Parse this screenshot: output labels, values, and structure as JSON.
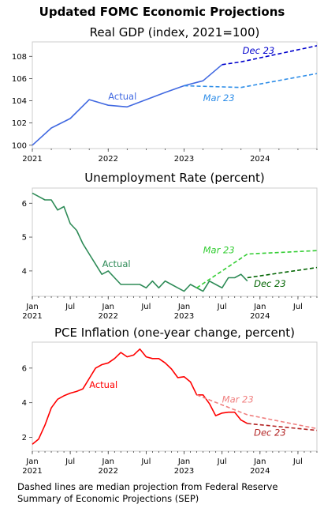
{
  "figure": {
    "title": "Updated FOMC Economic Projections",
    "footnote": "Dashed lines are median projection from Federal Reserve Summary of Economic Projections (SEP)"
  },
  "chart_data": [
    {
      "type": "line",
      "title": "Real GDP (index, 2021=100)",
      "xlabel": "",
      "ylabel": "",
      "xlim": [
        2021.0,
        2024.75
      ],
      "ylim": [
        99.7,
        109.3
      ],
      "yticks": [
        100,
        102,
        104,
        106,
        108
      ],
      "xticks": [
        {
          "pos": 2021.0,
          "label": [
            "2021"
          ]
        },
        {
          "pos": 2022.0,
          "label": [
            "2022"
          ]
        },
        {
          "pos": 2023.0,
          "label": [
            "2023"
          ]
        },
        {
          "pos": 2024.0,
          "label": [
            "2024"
          ]
        }
      ],
      "minor_step": 0.25,
      "grid": false,
      "legend": "none",
      "series": [
        {
          "name": "Actual",
          "color": "#4169e1",
          "dash": false,
          "x": [
            2021.0,
            2021.25,
            2021.5,
            2021.75,
            2022.0,
            2022.25,
            2022.5,
            2022.75,
            2023.0,
            2023.25,
            2023.5
          ],
          "y": [
            100.0,
            101.55,
            102.4,
            104.1,
            103.6,
            103.45,
            104.1,
            104.75,
            105.35,
            105.8,
            107.25
          ]
        },
        {
          "name": "Mar 23",
          "color": "#2f8ee8",
          "dash": true,
          "x": [
            2023.0,
            2023.75,
            2024.75
          ],
          "y": [
            105.35,
            105.2,
            106.45
          ]
        },
        {
          "name": "Dec 23",
          "color": "#0000cd",
          "dash": true,
          "x": [
            2023.5,
            2023.75,
            2024.75
          ],
          "y": [
            107.25,
            107.5,
            108.95
          ]
        }
      ],
      "annotations": [
        {
          "text": "Actual",
          "x": 2022.0,
          "y": 104.1,
          "color": "#4169e1",
          "italic": false
        },
        {
          "text": "Mar 23",
          "x": 2023.25,
          "y": 103.95,
          "color": "#2f8ee8",
          "italic": true
        },
        {
          "text": "Dec 23",
          "x": 2023.77,
          "y": 108.25,
          "color": "#0000cd",
          "italic": true
        }
      ]
    },
    {
      "type": "line",
      "title": "Unemployment Rate (percent)",
      "xlabel": "",
      "ylabel": "",
      "xlim": [
        2021.0,
        2024.75
      ],
      "ylim": [
        3.25,
        6.45
      ],
      "yticks": [
        4,
        5,
        6
      ],
      "xticks": [
        {
          "pos": 2021.0,
          "label": [
            "Jan",
            "2021"
          ]
        },
        {
          "pos": 2021.5,
          "label": [
            "Jul"
          ]
        },
        {
          "pos": 2022.0,
          "label": [
            "Jan",
            "2022"
          ]
        },
        {
          "pos": 2022.5,
          "label": [
            "Jul"
          ]
        },
        {
          "pos": 2023.0,
          "label": [
            "Jan",
            "2023"
          ]
        },
        {
          "pos": 2023.5,
          "label": [
            "Jul"
          ]
        },
        {
          "pos": 2024.0,
          "label": [
            "Jan",
            "2024"
          ]
        },
        {
          "pos": 2024.5,
          "label": [
            "Jul"
          ]
        }
      ],
      "minor_step": 0.0833333,
      "grid": false,
      "legend": "none",
      "series": [
        {
          "name": "Actual",
          "color": "#2e8b57",
          "dash": false,
          "x": [
            2021.0,
            2021.0833,
            2021.1667,
            2021.25,
            2021.3333,
            2021.4167,
            2021.5,
            2021.5833,
            2021.6667,
            2021.75,
            2021.8333,
            2021.9167,
            2022.0,
            2022.0833,
            2022.1667,
            2022.25,
            2022.3333,
            2022.4167,
            2022.5,
            2022.5833,
            2022.6667,
            2022.75,
            2022.8333,
            2022.9167,
            2023.0,
            2023.0833,
            2023.1667,
            2023.25,
            2023.3333,
            2023.4167,
            2023.5,
            2023.5833,
            2023.6667,
            2023.75,
            2023.8333
          ],
          "y": [
            6.3,
            6.2,
            6.1,
            6.1,
            5.8,
            5.9,
            5.4,
            5.2,
            4.8,
            4.5,
            4.2,
            3.9,
            4.0,
            3.8,
            3.6,
            3.6,
            3.6,
            3.6,
            3.5,
            3.7,
            3.5,
            3.7,
            3.6,
            3.5,
            3.4,
            3.6,
            3.5,
            3.4,
            3.7,
            3.6,
            3.5,
            3.8,
            3.8,
            3.9,
            3.7
          ]
        },
        {
          "name": "Mar 23",
          "color": "#32cd32",
          "dash": true,
          "x": [
            2023.1667,
            2023.8333,
            2024.75
          ],
          "y": [
            3.5,
            4.5,
            4.6
          ]
        },
        {
          "name": "Dec 23",
          "color": "#006400",
          "dash": true,
          "x": [
            2023.8333,
            2024.75
          ],
          "y": [
            3.8,
            4.1
          ]
        }
      ],
      "annotations": [
        {
          "text": "Actual",
          "x": 2021.92,
          "y": 4.12,
          "color": "#2e8b57",
          "italic": false
        },
        {
          "text": "Mar 23",
          "x": 2023.25,
          "y": 4.52,
          "color": "#32cd32",
          "italic": true
        },
        {
          "text": "Dec 23",
          "x": 2023.92,
          "y": 3.53,
          "color": "#006400",
          "italic": true
        }
      ]
    },
    {
      "type": "line",
      "title": "PCE Inflation (one-year change, percent)",
      "xlabel": "",
      "ylabel": "",
      "xlim": [
        2021.0,
        2024.75
      ],
      "ylim": [
        1.2,
        7.5
      ],
      "yticks": [
        2,
        4,
        6
      ],
      "xticks": [
        {
          "pos": 2021.0,
          "label": [
            "Jan",
            "2021"
          ]
        },
        {
          "pos": 2021.5,
          "label": [
            "Jul"
          ]
        },
        {
          "pos": 2022.0,
          "label": [
            "Jan",
            "2022"
          ]
        },
        {
          "pos": 2022.5,
          "label": [
            "Jul"
          ]
        },
        {
          "pos": 2023.0,
          "label": [
            "Jan",
            "2023"
          ]
        },
        {
          "pos": 2023.5,
          "label": [
            "Jul"
          ]
        },
        {
          "pos": 2024.0,
          "label": [
            "Jan",
            "2024"
          ]
        },
        {
          "pos": 2024.5,
          "label": [
            "Jul"
          ]
        }
      ],
      "minor_step": 0.0833333,
      "grid": false,
      "legend": "none",
      "series": [
        {
          "name": "Actual",
          "color": "#ff0000",
          "dash": false,
          "x": [
            2021.0,
            2021.0833,
            2021.1667,
            2021.25,
            2021.3333,
            2021.4167,
            2021.5,
            2021.5833,
            2021.6667,
            2021.75,
            2021.8333,
            2021.9167,
            2022.0,
            2022.0833,
            2022.1667,
            2022.25,
            2022.3333,
            2022.4167,
            2022.5,
            2022.5833,
            2022.6667,
            2022.75,
            2022.8333,
            2022.9167,
            2023.0,
            2023.0833,
            2023.1667,
            2023.25,
            2023.3333,
            2023.4167,
            2023.5,
            2023.5833,
            2023.6667,
            2023.75,
            2023.8333
          ],
          "y": [
            1.6,
            1.9,
            2.7,
            3.7,
            4.2,
            4.4,
            4.55,
            4.65,
            4.8,
            5.4,
            6.0,
            6.2,
            6.3,
            6.55,
            6.9,
            6.65,
            6.75,
            7.1,
            6.65,
            6.55,
            6.55,
            6.3,
            5.95,
            5.45,
            5.5,
            5.2,
            4.45,
            4.45,
            3.95,
            3.25,
            3.4,
            3.45,
            3.45,
            3.0,
            2.8
          ]
        },
        {
          "name": "Mar 23",
          "color": "#f08080",
          "dash": true,
          "x": [
            2023.1667,
            2023.8333,
            2024.75
          ],
          "y": [
            4.45,
            3.3,
            2.5
          ]
        },
        {
          "name": "Dec 23",
          "color": "#b22222",
          "dash": true,
          "x": [
            2023.8333,
            2024.75
          ],
          "y": [
            2.8,
            2.4
          ]
        }
      ],
      "annotations": [
        {
          "text": "Actual",
          "x": 2021.75,
          "y": 4.85,
          "color": "#ff0000",
          "italic": false
        },
        {
          "text": "Mar 23",
          "x": 2023.5,
          "y": 4.0,
          "color": "#f08080",
          "italic": true
        },
        {
          "text": "Dec 23",
          "x": 2023.92,
          "y": 2.1,
          "color": "#b22222",
          "italic": true
        }
      ]
    }
  ]
}
